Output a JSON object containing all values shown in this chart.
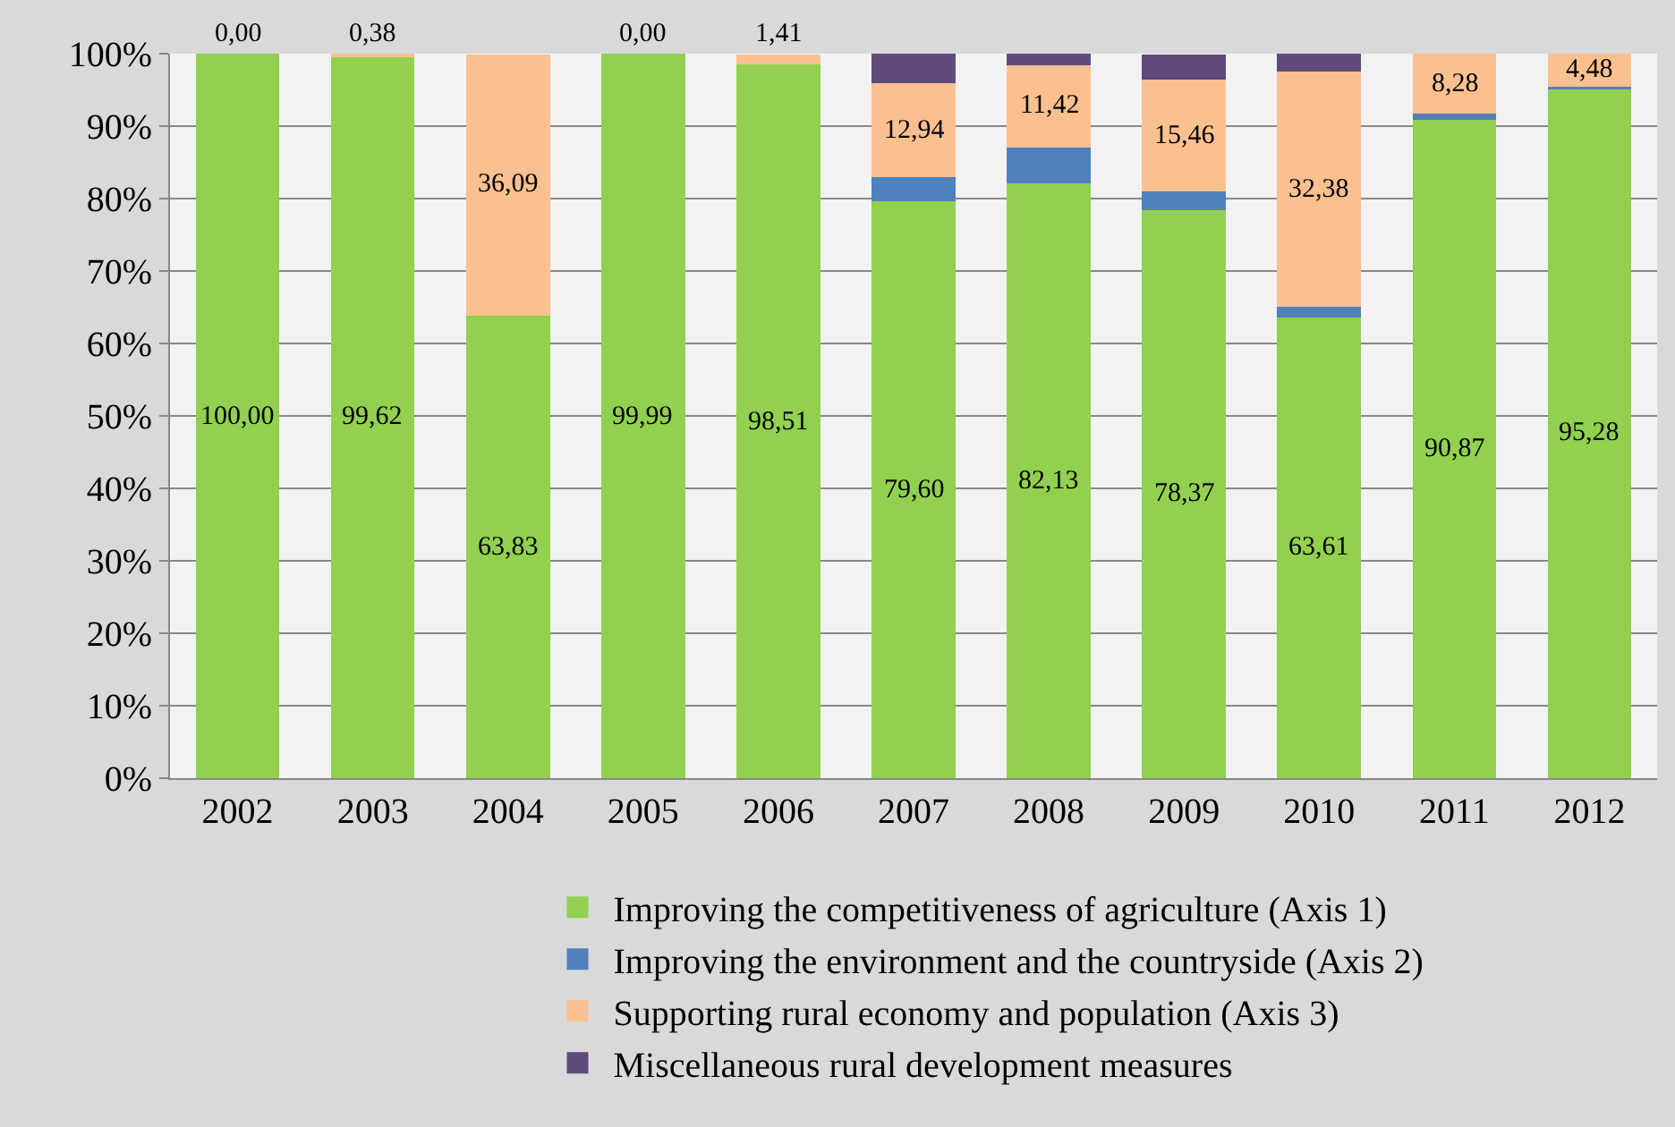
{
  "chart_data": {
    "type": "bar",
    "stacked": true,
    "categories": [
      "2002",
      "2003",
      "2004",
      "2005",
      "2006",
      "2007",
      "2008",
      "2009",
      "2010",
      "2011",
      "2012"
    ],
    "series": [
      {
        "name": "Improving the competitiveness of agriculture (Axis 1)",
        "color": "#92d050",
        "values": [
          100.0,
          99.62,
          63.83,
          99.99,
          98.51,
          79.6,
          82.13,
          78.37,
          63.61,
          90.87,
          95.28
        ],
        "value_labels": [
          "100,00",
          "99,62",
          "63,83",
          "99,99",
          "98,51",
          "79,60",
          "82,13",
          "78,37",
          "63,61",
          "90,87",
          "95,28"
        ]
      },
      {
        "name": "Improving the environment and the countryside (Axis 2)",
        "color": "#4f81bd",
        "values": [
          0,
          0,
          0,
          0,
          0,
          3.4,
          4.9,
          2.6,
          1.5,
          0.8,
          0.2
        ]
      },
      {
        "name": "Supporting rural economy and population (Axis 3)",
        "color": "#fac090",
        "values": [
          0.0,
          0.38,
          36.09,
          0.0,
          1.41,
          12.94,
          11.42,
          15.46,
          32.38,
          8.28,
          4.48
        ],
        "value_labels": [
          "0,00",
          "0,38",
          "36,09",
          "0,00",
          "1,41",
          "12,94",
          "11,42",
          "15,46",
          "32,38",
          "8,28",
          "4,48"
        ]
      },
      {
        "name": "Miscellaneous rural development measures",
        "color": "#604a7b",
        "values": [
          0,
          0,
          0,
          0,
          0,
          4.0,
          1.5,
          3.5,
          2.5,
          0,
          0
        ]
      }
    ],
    "ylim": [
      0,
      100
    ],
    "yticks": [
      {
        "value": 0,
        "label": "0%"
      },
      {
        "value": 10,
        "label": "10%"
      },
      {
        "value": 20,
        "label": "20%"
      },
      {
        "value": 30,
        "label": "30%"
      },
      {
        "value": 40,
        "label": "40%"
      },
      {
        "value": 50,
        "label": "50%"
      },
      {
        "value": 60,
        "label": "60%"
      },
      {
        "value": 70,
        "label": "70%"
      },
      {
        "value": 80,
        "label": "80%"
      },
      {
        "value": 90,
        "label": "90%"
      },
      {
        "value": 100,
        "label": "100%"
      }
    ],
    "grid": true,
    "legend": "bottom"
  }
}
